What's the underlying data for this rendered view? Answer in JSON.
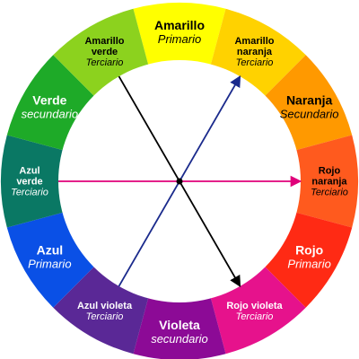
{
  "wheel": {
    "segments": [
      {
        "name": "Amarillo",
        "type": "Primario",
        "color": "#ffff00",
        "text_color": "#000000"
      },
      {
        "name": "Amarillo naranja",
        "type": "Terciario",
        "color": "#ffd200",
        "text_color": "#000000"
      },
      {
        "name": "Naranja",
        "type": "Secundario",
        "color": "#ff9900",
        "text_color": "#000000"
      },
      {
        "name": "Rojo naranja",
        "type": "Terciario",
        "color": "#ff5a1e",
        "text_color": "#000000"
      },
      {
        "name": "Rojo",
        "type": "Primario",
        "color": "#ff2a14",
        "text_color": "#ffffff"
      },
      {
        "name": "Rojo violeta",
        "type": "Terciario",
        "color": "#e6128c",
        "text_color": "#ffffff"
      },
      {
        "name": "Violeta",
        "type": "secundario",
        "color": "#8c0a96",
        "text_color": "#ffffff"
      },
      {
        "name": "Azul violeta",
        "type": "Terciario",
        "color": "#5a2896",
        "text_color": "#ffffff"
      },
      {
        "name": "Azul",
        "type": "Primario",
        "color": "#0a50e6",
        "text_color": "#ffffff"
      },
      {
        "name": "Azul verde",
        "type": "Terciario",
        "color": "#0a7864",
        "text_color": "#ffffff"
      },
      {
        "name": "Verde",
        "type": "secundario",
        "color": "#1eaa28",
        "text_color": "#ffffff"
      },
      {
        "name": "Amarillo verde",
        "type": "Terciario",
        "color": "#8cd21e",
        "text_color": "#000000"
      }
    ],
    "label_lines": [
      [
        "Amarillo"
      ],
      [
        "Amarillo",
        "naranja"
      ],
      [
        "Naranja"
      ],
      [
        "Rojo",
        "naranja"
      ],
      [
        "Rojo"
      ],
      [
        "Rojo violeta"
      ],
      [
        "Violeta"
      ],
      [
        "Azul violeta"
      ],
      [
        "Azul"
      ],
      [
        "Azul",
        "verde"
      ],
      [
        "Verde"
      ],
      [
        "Amarillo",
        "verde"
      ]
    ],
    "lines": [
      {
        "from": "Amarillo verde",
        "to": "Rojo violeta",
        "color": "#000000",
        "arrow": true
      },
      {
        "from": "Azul violeta",
        "to": "Amarillo naranja",
        "color": "#1a2a8c",
        "arrow": true
      },
      {
        "from": "Azul verde",
        "to": "Rojo naranja",
        "color": "#e0007a",
        "arrow": true
      }
    ]
  }
}
